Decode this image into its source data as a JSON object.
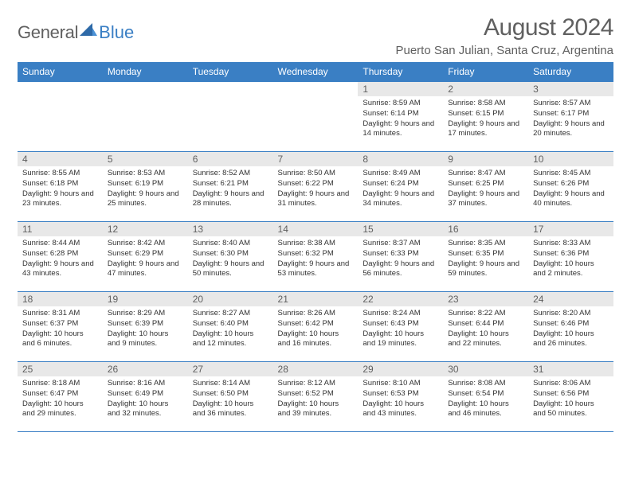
{
  "logo": {
    "text1": "General",
    "text2": "Blue"
  },
  "title": "August 2024",
  "subtitle": "Puerto San Julian, Santa Cruz, Argentina",
  "colors": {
    "accent": "#3a7fc4",
    "header_bg": "#e8e8e8",
    "text_main": "#333333",
    "text_muted": "#606060",
    "background": "#ffffff"
  },
  "weekdays": [
    "Sunday",
    "Monday",
    "Tuesday",
    "Wednesday",
    "Thursday",
    "Friday",
    "Saturday"
  ],
  "layout": {
    "first_day_column": 4,
    "rows": 5
  },
  "days": [
    {
      "n": 1,
      "sunrise": "8:59 AM",
      "sunset": "6:14 PM",
      "daylight": "9 hours and 14 minutes."
    },
    {
      "n": 2,
      "sunrise": "8:58 AM",
      "sunset": "6:15 PM",
      "daylight": "9 hours and 17 minutes."
    },
    {
      "n": 3,
      "sunrise": "8:57 AM",
      "sunset": "6:17 PM",
      "daylight": "9 hours and 20 minutes."
    },
    {
      "n": 4,
      "sunrise": "8:55 AM",
      "sunset": "6:18 PM",
      "daylight": "9 hours and 23 minutes."
    },
    {
      "n": 5,
      "sunrise": "8:53 AM",
      "sunset": "6:19 PM",
      "daylight": "9 hours and 25 minutes."
    },
    {
      "n": 6,
      "sunrise": "8:52 AM",
      "sunset": "6:21 PM",
      "daylight": "9 hours and 28 minutes."
    },
    {
      "n": 7,
      "sunrise": "8:50 AM",
      "sunset": "6:22 PM",
      "daylight": "9 hours and 31 minutes."
    },
    {
      "n": 8,
      "sunrise": "8:49 AM",
      "sunset": "6:24 PM",
      "daylight": "9 hours and 34 minutes."
    },
    {
      "n": 9,
      "sunrise": "8:47 AM",
      "sunset": "6:25 PM",
      "daylight": "9 hours and 37 minutes."
    },
    {
      "n": 10,
      "sunrise": "8:45 AM",
      "sunset": "6:26 PM",
      "daylight": "9 hours and 40 minutes."
    },
    {
      "n": 11,
      "sunrise": "8:44 AM",
      "sunset": "6:28 PM",
      "daylight": "9 hours and 43 minutes."
    },
    {
      "n": 12,
      "sunrise": "8:42 AM",
      "sunset": "6:29 PM",
      "daylight": "9 hours and 47 minutes."
    },
    {
      "n": 13,
      "sunrise": "8:40 AM",
      "sunset": "6:30 PM",
      "daylight": "9 hours and 50 minutes."
    },
    {
      "n": 14,
      "sunrise": "8:38 AM",
      "sunset": "6:32 PM",
      "daylight": "9 hours and 53 minutes."
    },
    {
      "n": 15,
      "sunrise": "8:37 AM",
      "sunset": "6:33 PM",
      "daylight": "9 hours and 56 minutes."
    },
    {
      "n": 16,
      "sunrise": "8:35 AM",
      "sunset": "6:35 PM",
      "daylight": "9 hours and 59 minutes."
    },
    {
      "n": 17,
      "sunrise": "8:33 AM",
      "sunset": "6:36 PM",
      "daylight": "10 hours and 2 minutes."
    },
    {
      "n": 18,
      "sunrise": "8:31 AM",
      "sunset": "6:37 PM",
      "daylight": "10 hours and 6 minutes."
    },
    {
      "n": 19,
      "sunrise": "8:29 AM",
      "sunset": "6:39 PM",
      "daylight": "10 hours and 9 minutes."
    },
    {
      "n": 20,
      "sunrise": "8:27 AM",
      "sunset": "6:40 PM",
      "daylight": "10 hours and 12 minutes."
    },
    {
      "n": 21,
      "sunrise": "8:26 AM",
      "sunset": "6:42 PM",
      "daylight": "10 hours and 16 minutes."
    },
    {
      "n": 22,
      "sunrise": "8:24 AM",
      "sunset": "6:43 PM",
      "daylight": "10 hours and 19 minutes."
    },
    {
      "n": 23,
      "sunrise": "8:22 AM",
      "sunset": "6:44 PM",
      "daylight": "10 hours and 22 minutes."
    },
    {
      "n": 24,
      "sunrise": "8:20 AM",
      "sunset": "6:46 PM",
      "daylight": "10 hours and 26 minutes."
    },
    {
      "n": 25,
      "sunrise": "8:18 AM",
      "sunset": "6:47 PM",
      "daylight": "10 hours and 29 minutes."
    },
    {
      "n": 26,
      "sunrise": "8:16 AM",
      "sunset": "6:49 PM",
      "daylight": "10 hours and 32 minutes."
    },
    {
      "n": 27,
      "sunrise": "8:14 AM",
      "sunset": "6:50 PM",
      "daylight": "10 hours and 36 minutes."
    },
    {
      "n": 28,
      "sunrise": "8:12 AM",
      "sunset": "6:52 PM",
      "daylight": "10 hours and 39 minutes."
    },
    {
      "n": 29,
      "sunrise": "8:10 AM",
      "sunset": "6:53 PM",
      "daylight": "10 hours and 43 minutes."
    },
    {
      "n": 30,
      "sunrise": "8:08 AM",
      "sunset": "6:54 PM",
      "daylight": "10 hours and 46 minutes."
    },
    {
      "n": 31,
      "sunrise": "8:06 AM",
      "sunset": "6:56 PM",
      "daylight": "10 hours and 50 minutes."
    }
  ],
  "labels": {
    "sunrise": "Sunrise:",
    "sunset": "Sunset:",
    "daylight": "Daylight:"
  }
}
